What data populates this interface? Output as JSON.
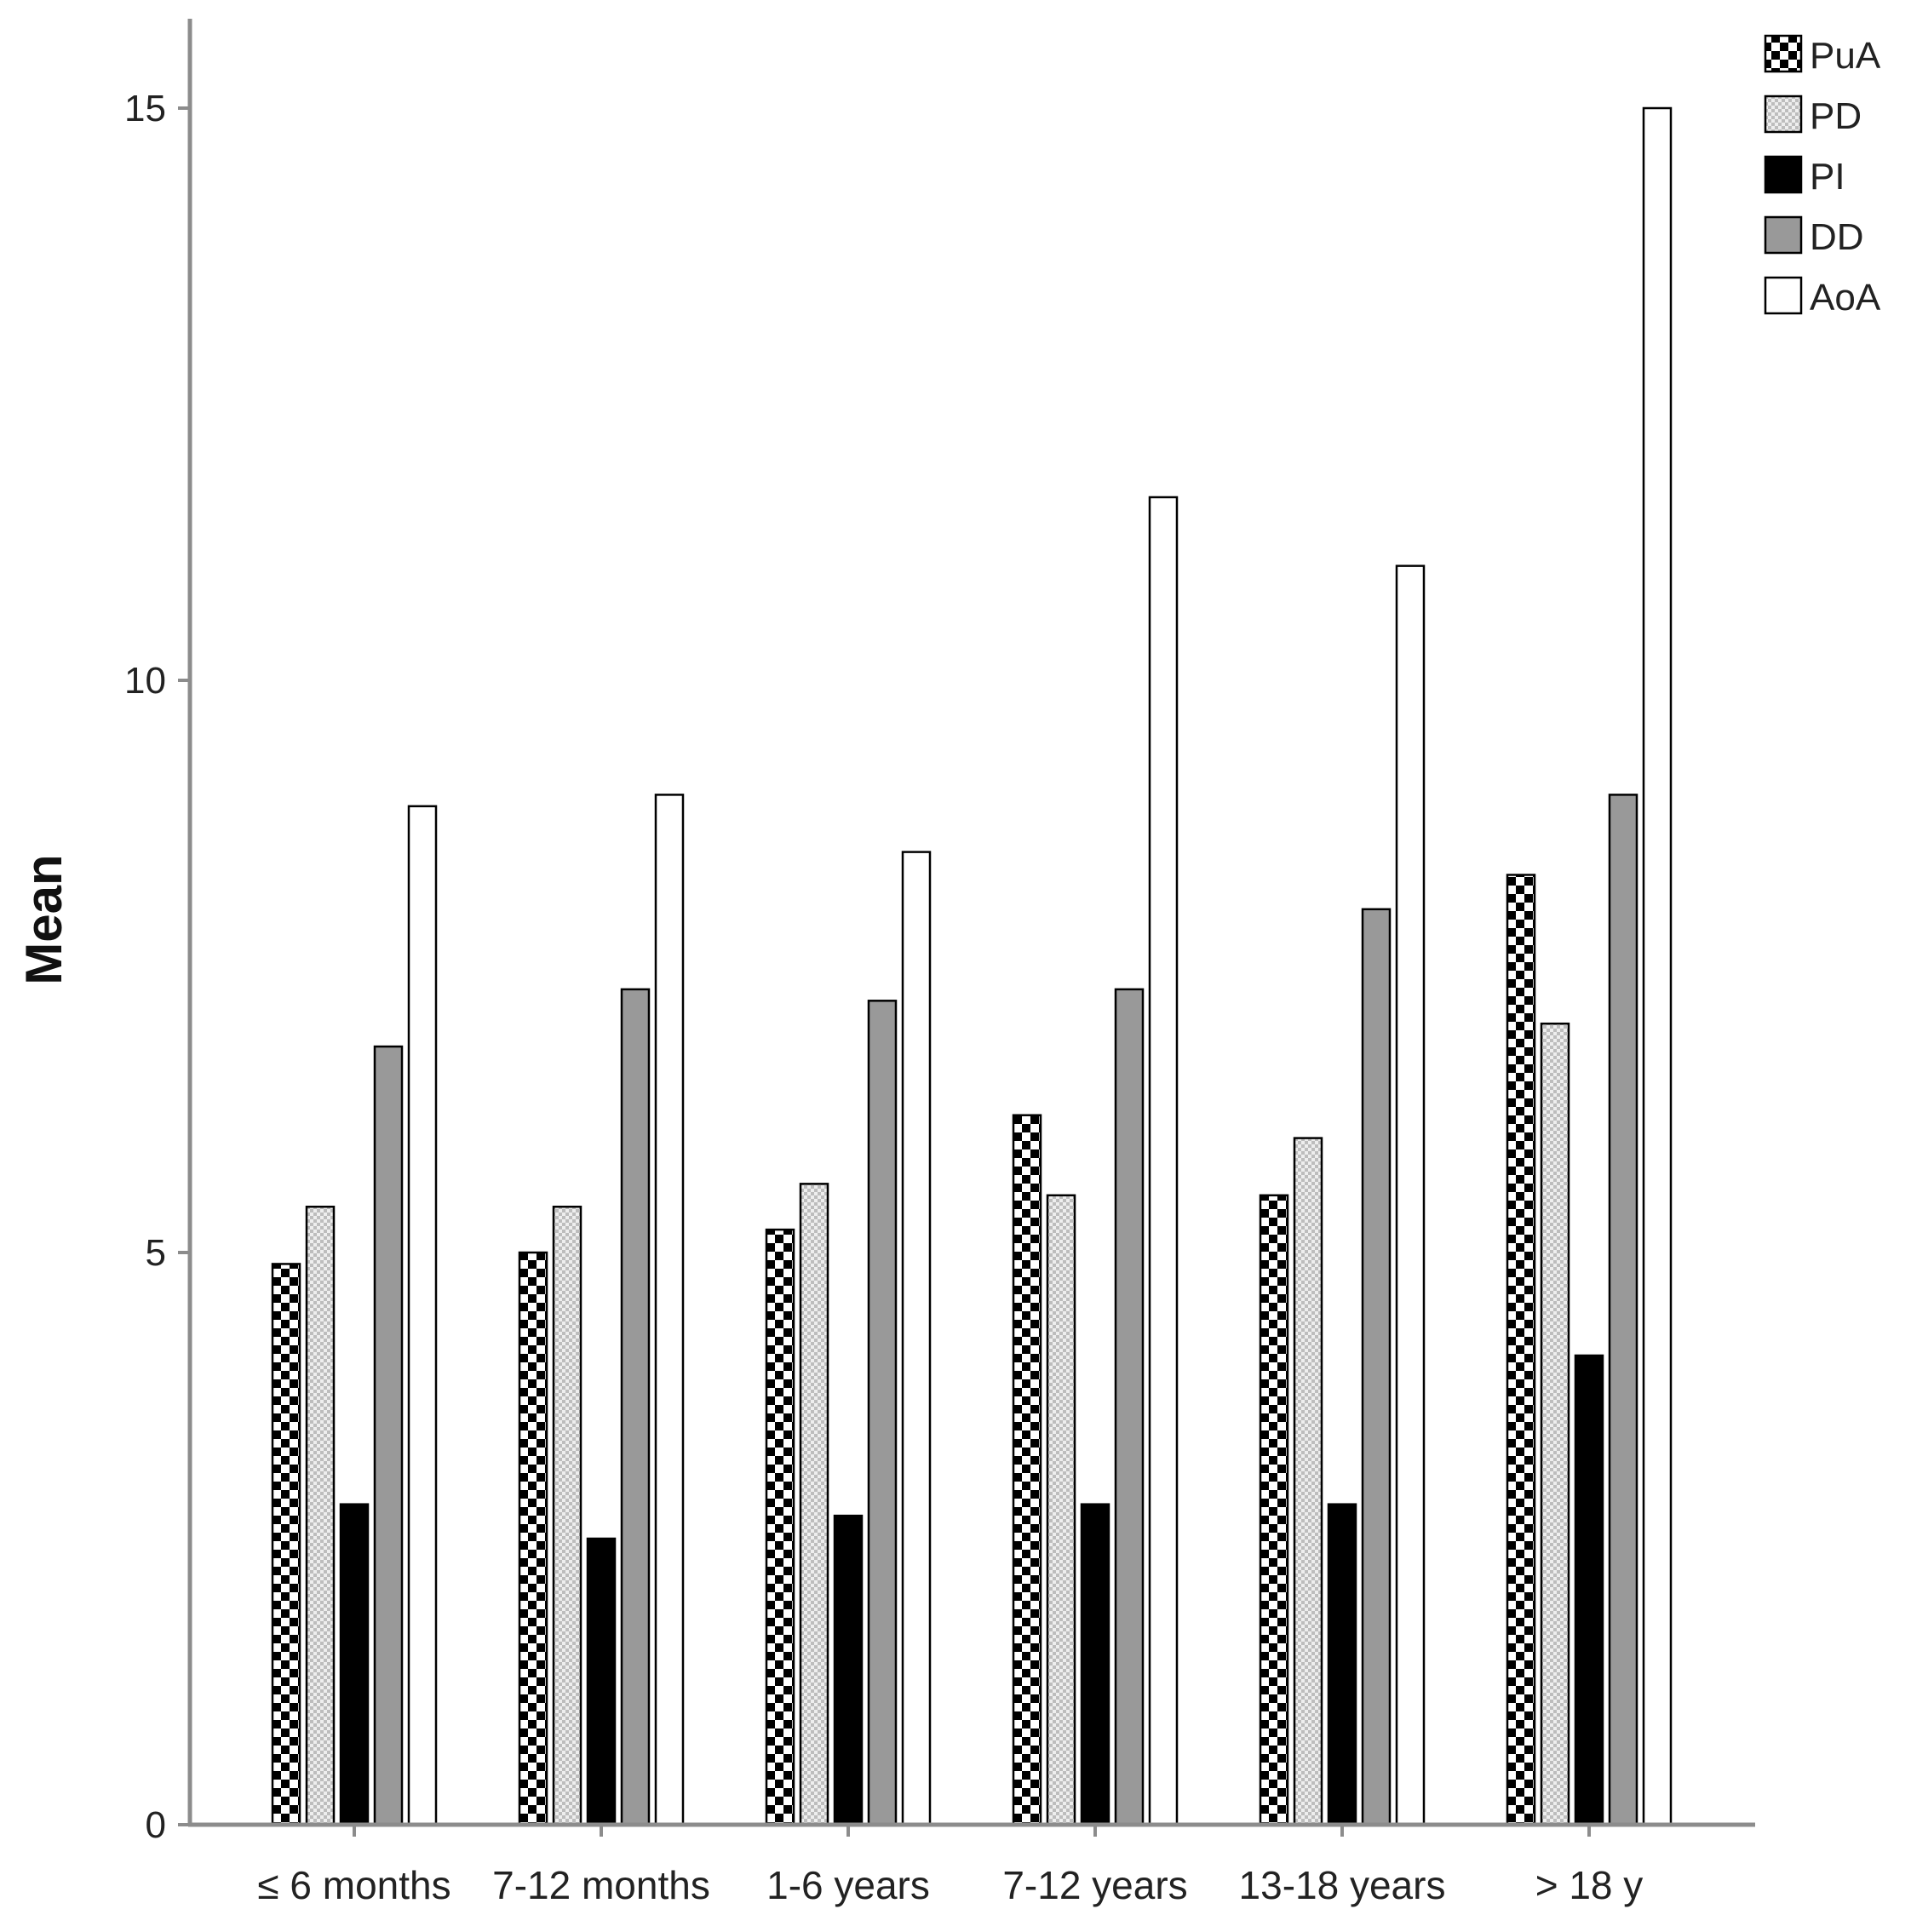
{
  "chart_data": {
    "type": "bar",
    "title": "",
    "xlabel": "",
    "ylabel": "Mean",
    "ylim": [
      0,
      15
    ],
    "yticks": [
      0,
      5,
      10,
      15
    ],
    "grid": false,
    "legend_position": "top-right",
    "categories": [
      "≤ 6 months",
      "7-12 months",
      "1-6 years",
      "7-12 years",
      "13-18 years",
      "> 18 y"
    ],
    "series": [
      {
        "name": "PuA",
        "pattern": "checkerboard",
        "color": "#000000",
        "values": [
          4.9,
          5.0,
          5.2,
          6.2,
          5.5,
          8.3
        ]
      },
      {
        "name": "PD",
        "pattern": "dotted",
        "color": "#c8c8c8",
        "values": [
          5.4,
          5.4,
          5.6,
          5.5,
          6.0,
          7.0
        ]
      },
      {
        "name": "PI",
        "pattern": "solid",
        "color": "#000000",
        "values": [
          2.8,
          2.5,
          2.7,
          2.8,
          2.8,
          4.1
        ]
      },
      {
        "name": "DD",
        "pattern": "solid",
        "color": "#999999",
        "values": [
          6.8,
          7.3,
          7.2,
          7.3,
          8.0,
          9.0
        ]
      },
      {
        "name": "AoA",
        "pattern": "solid",
        "color": "#ffffff",
        "values": [
          8.9,
          9.0,
          8.5,
          11.6,
          11.0,
          15.0
        ]
      }
    ]
  }
}
